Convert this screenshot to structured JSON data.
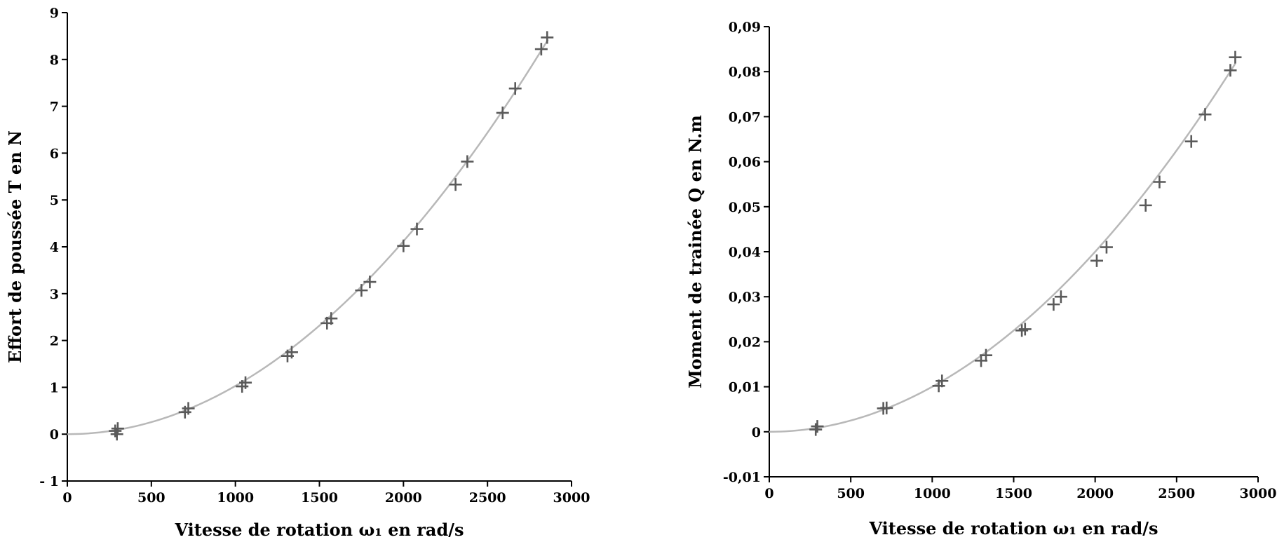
{
  "chart_data": [
    {
      "type": "scatter",
      "xlabel": "Vitesse de rotation ω₁ en rad/s",
      "ylabel": "Effort de poussée T en N",
      "xlim": [
        0,
        3000
      ],
      "ylim": [
        -1,
        9
      ],
      "xticks": [
        0,
        500,
        1000,
        1500,
        2000,
        2500,
        3000
      ],
      "yticks": [
        -1,
        0,
        1,
        2,
        3,
        4,
        5,
        6,
        7,
        8,
        9
      ],
      "xtick_labels": [
        "0",
        "500",
        "1000",
        "1500",
        "2000",
        "2500",
        "3000"
      ],
      "ytick_labels": [
        "- 1",
        "0",
        "1",
        "2",
        "3",
        "4",
        "5",
        "6",
        "7",
        "8",
        "9"
      ],
      "grid": false,
      "fit": {
        "type": "quadratic",
        "coefficient": 1.03e-06,
        "x_range": [
          0,
          2860
        ]
      },
      "points": [
        [
          285,
          0.07
        ],
        [
          295,
          0.0
        ],
        [
          300,
          0.12
        ],
        [
          700,
          0.47
        ],
        [
          720,
          0.55
        ],
        [
          1040,
          1.02
        ],
        [
          1060,
          1.1
        ],
        [
          1310,
          1.67
        ],
        [
          1335,
          1.75
        ],
        [
          1545,
          2.37
        ],
        [
          1570,
          2.47
        ],
        [
          1750,
          3.07
        ],
        [
          1800,
          3.25
        ],
        [
          2000,
          4.02
        ],
        [
          2080,
          4.38
        ],
        [
          2310,
          5.33
        ],
        [
          2380,
          5.82
        ],
        [
          2590,
          6.86
        ],
        [
          2665,
          7.38
        ],
        [
          2820,
          8.22
        ],
        [
          2855,
          8.47
        ]
      ]
    },
    {
      "type": "scatter",
      "xlabel": "Vitesse de rotation ω₁ en rad/s",
      "ylabel": "Moment de trainée Q en N.m",
      "xlim": [
        0,
        3000
      ],
      "ylim": [
        -0.01,
        0.09
      ],
      "xticks": [
        0,
        500,
        1000,
        1500,
        2000,
        2500,
        3000
      ],
      "yticks": [
        -0.01,
        0,
        0.01,
        0.02,
        0.03,
        0.04,
        0.05,
        0.06,
        0.07,
        0.08,
        0.09
      ],
      "xtick_labels": [
        "0",
        "500",
        "1000",
        "1500",
        "2000",
        "2500",
        "3000"
      ],
      "ytick_labels": [
        "-0,01",
        "0",
        "0,01",
        "0,02",
        "0,03",
        "0,04",
        "0,05",
        "0,06",
        "0,07",
        "0,08",
        "0,09"
      ],
      "grid": false,
      "fit": {
        "type": "quadratic",
        "coefficient": 1e-08,
        "x_range": [
          0,
          2860
        ]
      },
      "points": [
        [
          285,
          0.0005
        ],
        [
          295,
          0.0012
        ],
        [
          700,
          0.0052
        ],
        [
          720,
          0.0053
        ],
        [
          1040,
          0.0102
        ],
        [
          1060,
          0.0113
        ],
        [
          1300,
          0.0158
        ],
        [
          1330,
          0.017
        ],
        [
          1550,
          0.0225
        ],
        [
          1570,
          0.0228
        ],
        [
          1745,
          0.0283
        ],
        [
          1790,
          0.03
        ],
        [
          2010,
          0.038
        ],
        [
          2070,
          0.041
        ],
        [
          2310,
          0.0503
        ],
        [
          2395,
          0.0555
        ],
        [
          2590,
          0.0645
        ],
        [
          2675,
          0.0705
        ],
        [
          2830,
          0.0803
        ],
        [
          2860,
          0.0832
        ]
      ]
    }
  ]
}
